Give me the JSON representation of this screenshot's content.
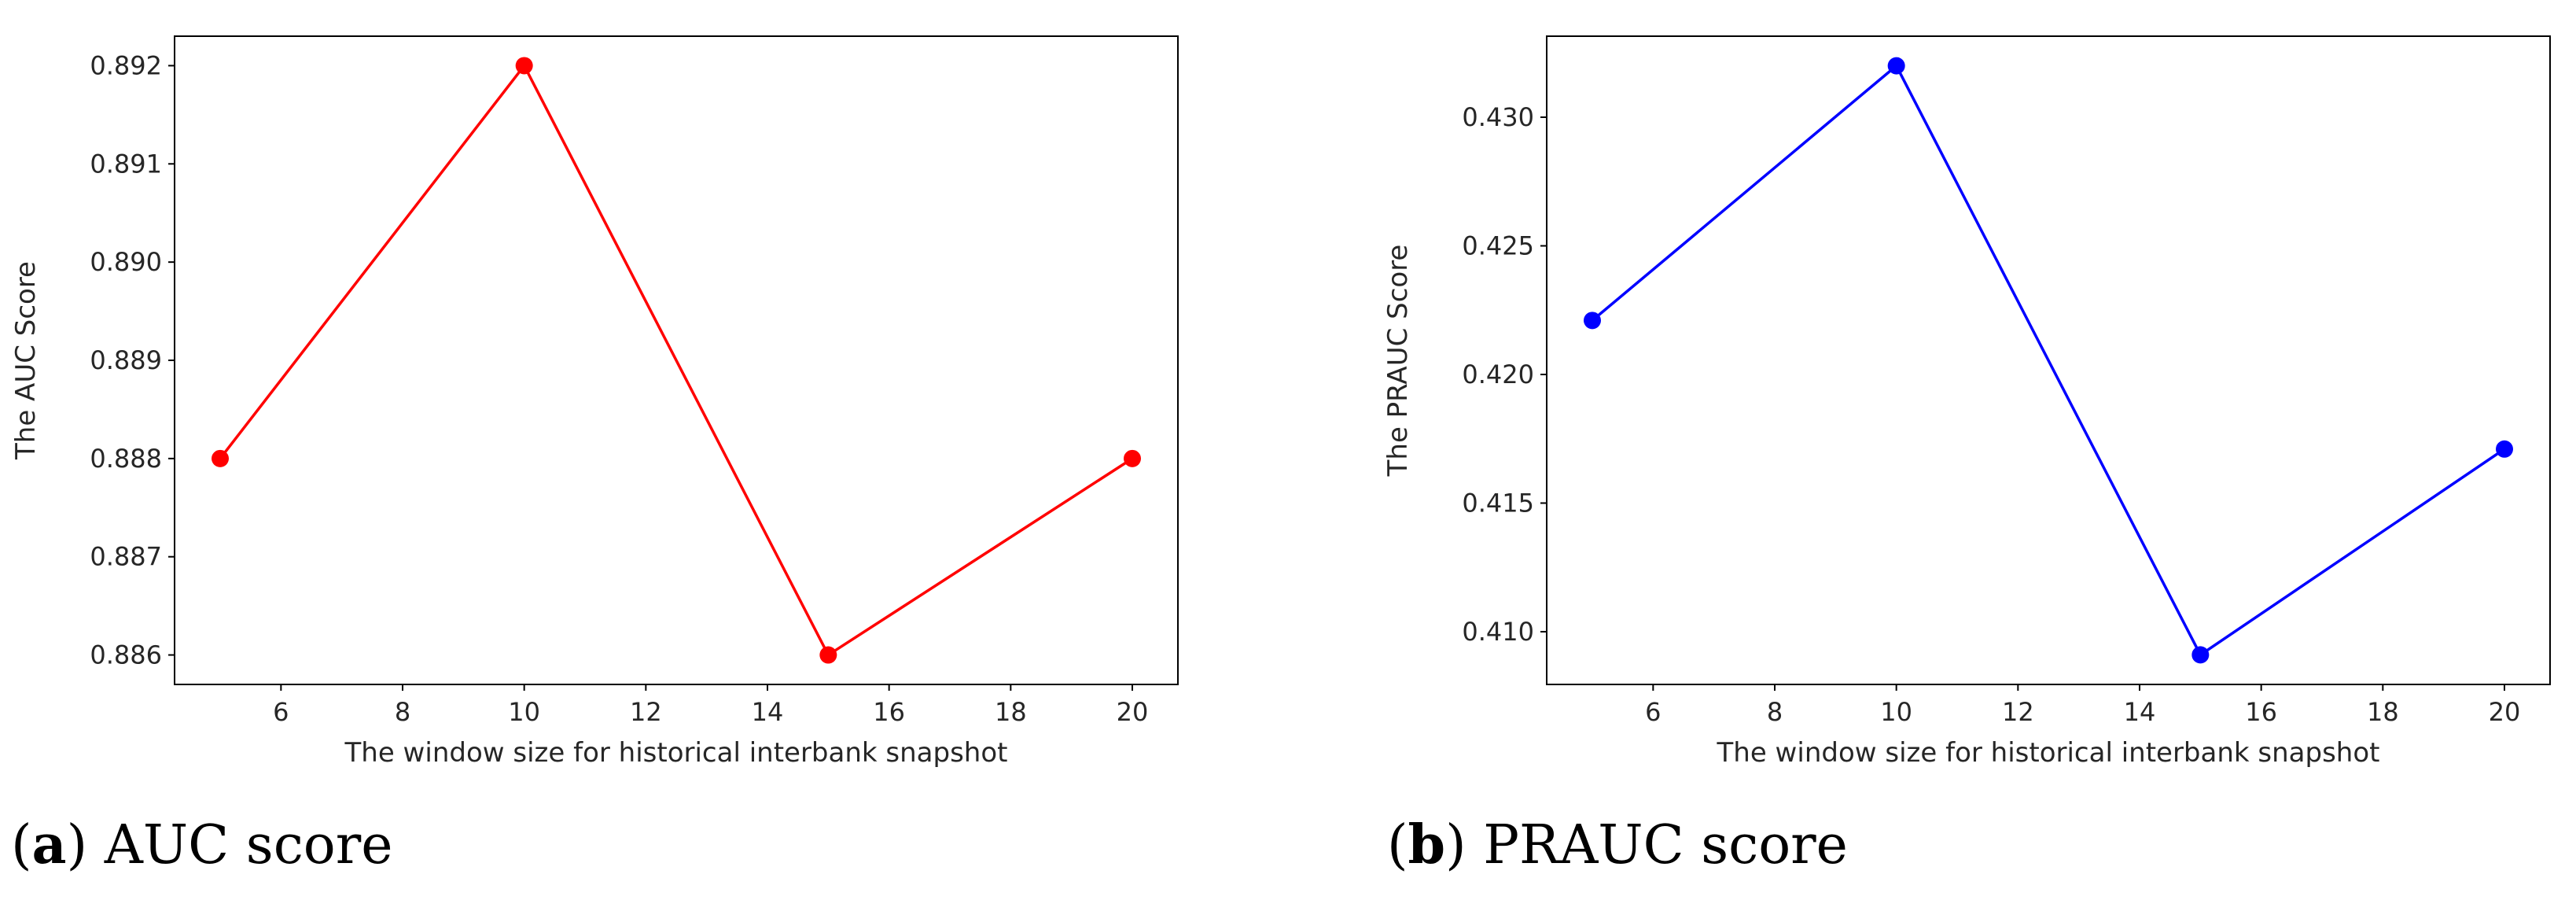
{
  "captions": [
    {
      "label": "a",
      "text": "AUC score"
    },
    {
      "label": "b",
      "text": "PRAUC score"
    }
  ],
  "chart_data": [
    {
      "type": "line",
      "xlabel": "The window size for historical interbank snapshot",
      "ylabel": "The AUC Score",
      "x": [
        5,
        10,
        15,
        20
      ],
      "series": [
        {
          "values": [
            0.888,
            0.892,
            0.886,
            0.888
          ],
          "color": "#ff0000",
          "marker": "circle"
        }
      ],
      "xticks": [
        6,
        8,
        10,
        12,
        14,
        16,
        18,
        20
      ],
      "yticks": [
        0.886,
        0.887,
        0.888,
        0.889,
        0.89,
        0.891,
        0.892
      ],
      "ytick_decimals": 3,
      "xlim": [
        4.25,
        20.75
      ],
      "ylim": [
        0.8857,
        0.8923
      ],
      "grid": false
    },
    {
      "type": "line",
      "xlabel": "The window size for historical interbank snapshot",
      "ylabel": "The PRAUC Score",
      "x": [
        5,
        10,
        15,
        20
      ],
      "series": [
        {
          "values": [
            0.4221,
            0.432,
            0.4091,
            0.4171
          ],
          "color": "#0000ff",
          "marker": "circle"
        }
      ],
      "xticks": [
        6,
        8,
        10,
        12,
        14,
        16,
        18,
        20
      ],
      "yticks": [
        0.41,
        0.415,
        0.42,
        0.425,
        0.43
      ],
      "ytick_decimals": 3,
      "xlim": [
        4.25,
        20.75
      ],
      "ylim": [
        0.40795,
        0.43315
      ],
      "grid": false
    }
  ]
}
